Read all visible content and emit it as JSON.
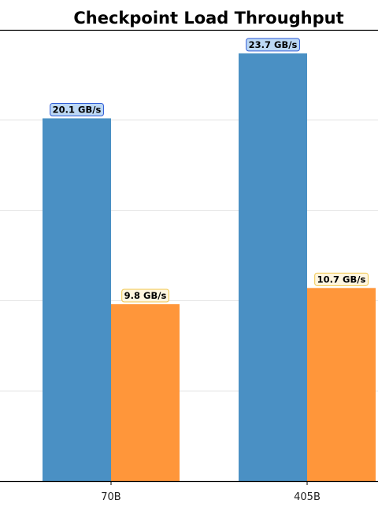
{
  "chart_data": {
    "type": "bar",
    "title": "Checkpoint Load Throughput",
    "xlabel": "",
    "ylabel": "",
    "categories": [
      "70B",
      "405B"
    ],
    "series": [
      {
        "values": [
          20.1,
          23.7
        ],
        "labels": [
          "20.1 GB/s",
          "23.7 GB/s"
        ],
        "color": "#4a90c4",
        "label_bg": "#bcd8f5",
        "label_border": "#2f5bd6"
      },
      {
        "values": [
          9.8,
          10.7
        ],
        "labels": [
          "9.8 GB/s",
          "10.7 GB/s"
        ],
        "color": "#ff963a",
        "label_bg": "#fff6e0",
        "label_border": "#f0c64a"
      }
    ],
    "ylim": [
      0,
      25
    ],
    "grid": true
  }
}
